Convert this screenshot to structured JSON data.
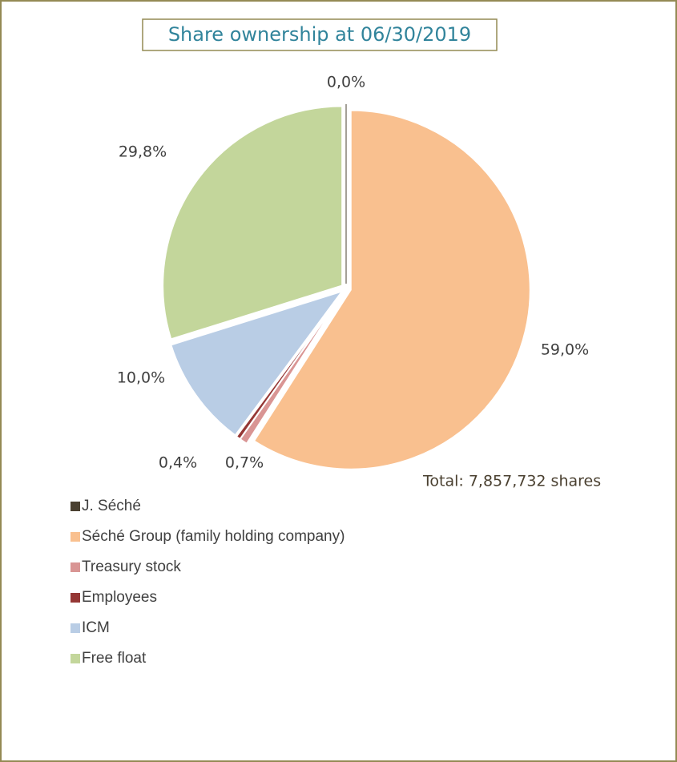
{
  "chart_data": {
    "type": "pie",
    "title": "Share ownership at 06/30/2019",
    "categories": [
      "J. Séché",
      "Séché Group (family holding company)",
      "Treasury stock",
      "Employees",
      "ICM",
      "Free float"
    ],
    "values": [
      0.0,
      59.0,
      0.7,
      0.4,
      10.0,
      29.8
    ],
    "value_labels": [
      "0,0%",
      "59,0%",
      "0,7%",
      "0,4%",
      "10,0%",
      "29,8%"
    ],
    "colors": [
      "#4a4030",
      "#f9c08f",
      "#d99594",
      "#953735",
      "#b9cde5",
      "#c3d69b"
    ],
    "annotation": "Total: 7,857,732 shares",
    "legend": "bottom"
  }
}
